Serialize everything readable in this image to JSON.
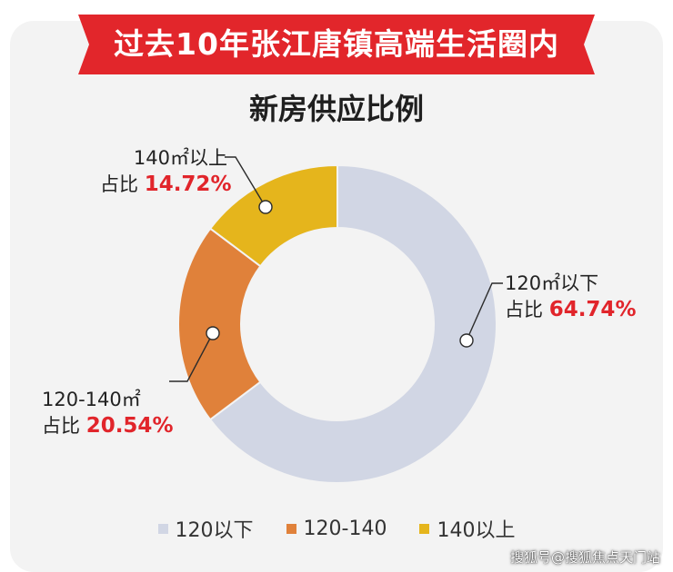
{
  "banner": {
    "text": "过去10年张江唐镇高端生活圈内"
  },
  "watermark": "搜狐号@搜狐焦点天门站",
  "colors": {
    "banner_red": "#e2262b",
    "pct_red": "#e1252b"
  },
  "chart_data": {
    "type": "pie",
    "title": "新房供应比例",
    "donut": true,
    "share_prefix": "占比",
    "slices": [
      {
        "legend": "120以下",
        "callout": "120㎡以下",
        "value": 64.74,
        "label": "64.74%",
        "color": "#d1d6e4"
      },
      {
        "legend": "120-140",
        "callout": "120-140㎡",
        "value": 20.54,
        "label": "20.54%",
        "color": "#e0813a"
      },
      {
        "legend": "140以上",
        "callout": "140㎡以上",
        "value": 14.72,
        "label": "14.72%",
        "color": "#e5b51c"
      }
    ],
    "legend_position": "bottom"
  }
}
